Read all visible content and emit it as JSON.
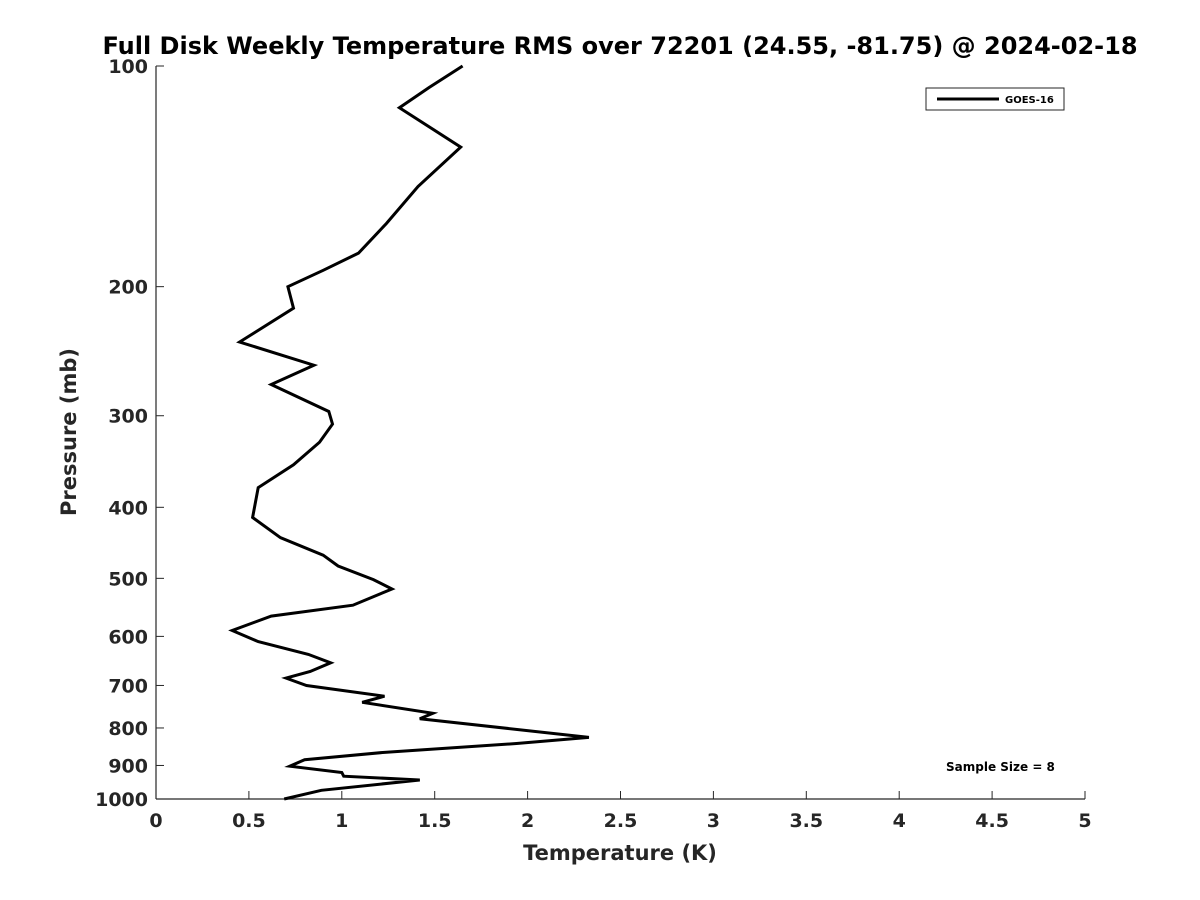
{
  "chart_data": {
    "type": "line",
    "title": "Full Disk Weekly Temperature RMS over 72201 (24.55, -81.75) @ 2024-02-18",
    "xlabel": "Temperature (K)",
    "ylabel": "Pressure (mb)",
    "xlim": [
      0,
      5
    ],
    "ylim": [
      100,
      1000
    ],
    "y_scale": "log",
    "y_reversed": true,
    "x_ticks": [
      0,
      0.5,
      1,
      1.5,
      2,
      2.5,
      3,
      3.5,
      4,
      4.5,
      5
    ],
    "y_ticks": [
      100,
      200,
      300,
      400,
      500,
      600,
      700,
      800,
      900,
      1000
    ],
    "grid": false,
    "legend_position": "top-right",
    "series": [
      {
        "name": "GOES-16",
        "color": "#000000",
        "points": [
          [
            1.65,
            100
          ],
          [
            1.47,
            107
          ],
          [
            1.31,
            114
          ],
          [
            1.64,
            129
          ],
          [
            1.41,
            146
          ],
          [
            1.24,
            164
          ],
          [
            1.09,
            180
          ],
          [
            0.9,
            190
          ],
          [
            0.71,
            200
          ],
          [
            0.74,
            214
          ],
          [
            0.45,
            238
          ],
          [
            0.85,
            256
          ],
          [
            0.62,
            272
          ],
          [
            0.93,
            296
          ],
          [
            0.95,
            308
          ],
          [
            0.88,
            326
          ],
          [
            0.74,
            350
          ],
          [
            0.55,
            376
          ],
          [
            0.52,
            413
          ],
          [
            0.67,
            440
          ],
          [
            0.9,
            465
          ],
          [
            0.98,
            481
          ],
          [
            1.17,
            502
          ],
          [
            1.27,
            517
          ],
          [
            1.06,
            544
          ],
          [
            0.62,
            563
          ],
          [
            0.41,
            589
          ],
          [
            0.55,
            610
          ],
          [
            0.82,
            635
          ],
          [
            0.94,
            652
          ],
          [
            0.83,
            670
          ],
          [
            0.7,
            684
          ],
          [
            0.81,
            700
          ],
          [
            1.23,
            724
          ],
          [
            1.11,
            738
          ],
          [
            1.49,
            764
          ],
          [
            1.42,
            777
          ],
          [
            2.33,
            824
          ],
          [
            1.94,
            840
          ],
          [
            1.22,
            864
          ],
          [
            0.8,
            884
          ],
          [
            0.72,
            902
          ],
          [
            1.0,
            920
          ],
          [
            1.01,
            931
          ],
          [
            1.42,
            942
          ],
          [
            0.89,
            973
          ],
          [
            0.69,
            1000
          ]
        ]
      }
    ]
  },
  "annotation": {
    "sample_size_text": "Sample Size = 8"
  }
}
